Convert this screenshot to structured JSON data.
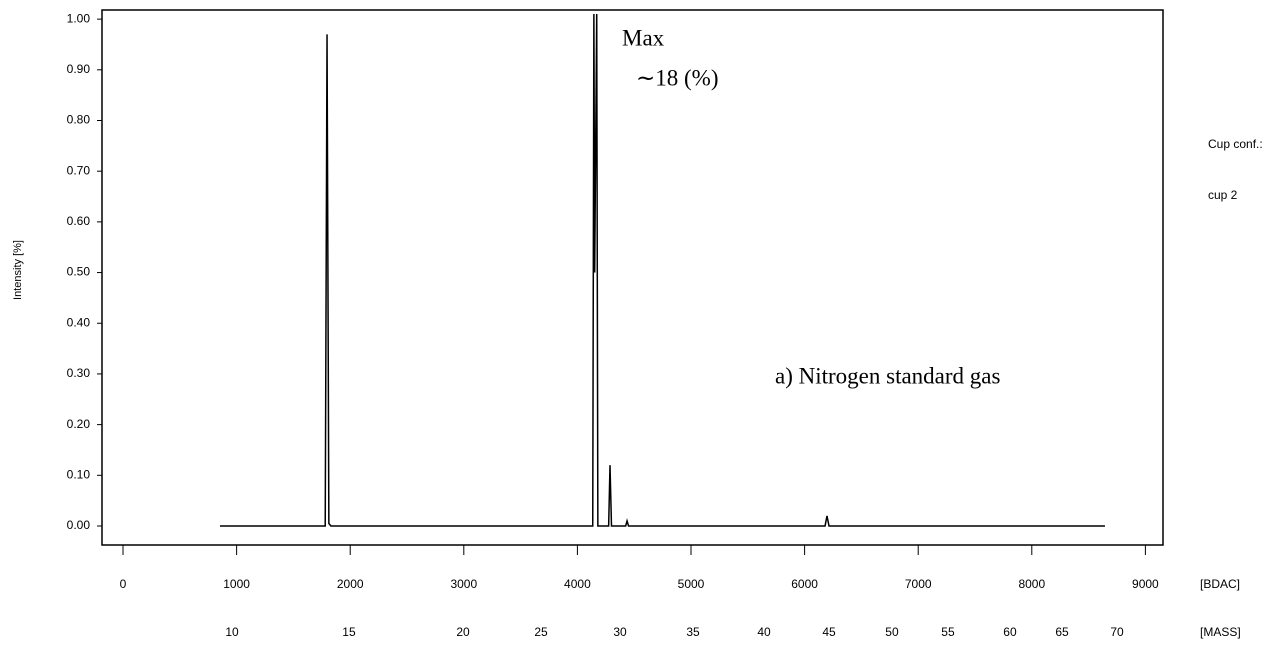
{
  "chart_data": {
    "type": "line",
    "y_label": "Intensity [%]",
    "x_label": "[BDAC]",
    "x2_label": "[MASS]",
    "side_texts": [
      "Cup conf.:",
      "cup 2"
    ],
    "annotations": [
      "Max",
      "∼18 (%)",
      "a) Nitrogen standard gas"
    ],
    "x": [
      854,
      1780,
      1796,
      1812,
      1830,
      4135,
      4145,
      4152,
      4170,
      4180,
      4275,
      4287,
      4300,
      4425,
      4437,
      4450,
      6180,
      6197,
      6215,
      8644
    ],
    "series": [
      {
        "color": "#000000",
        "values": [
          0,
          0,
          0.97,
          0.005,
          0,
          0,
          1.01,
          0.5,
          1.01,
          0,
          0,
          0.12,
          0,
          0,
          0.01,
          0,
          0,
          0.02,
          0,
          0
        ]
      }
    ],
    "xlim": [
      -185,
      9155
    ],
    "ylim": [
      -0.0375,
      1.018
    ],
    "xticks": [
      0,
      1000,
      2000,
      3000,
      4000,
      5000,
      6000,
      7000,
      8000,
      9000
    ],
    "x2ticks": [
      {
        "value": 960,
        "label": "10"
      },
      {
        "value": 1989,
        "label": "15"
      },
      {
        "value": 2993,
        "label": "20"
      },
      {
        "value": 3680,
        "label": "25"
      },
      {
        "value": 4375,
        "label": "30"
      },
      {
        "value": 5018,
        "label": "35"
      },
      {
        "value": 5643,
        "label": "40"
      },
      {
        "value": 6215,
        "label": "45"
      },
      {
        "value": 6769,
        "label": "50"
      },
      {
        "value": 7262,
        "label": "55"
      },
      {
        "value": 7808,
        "label": "60"
      },
      {
        "value": 8266,
        "label": "65"
      },
      {
        "value": 8750,
        "label": "70"
      }
    ],
    "yticks": [
      {
        "value": 0,
        "label": "0.00"
      },
      {
        "value": 0.1,
        "label": "0.10"
      },
      {
        "value": 0.2,
        "label": "0.20"
      },
      {
        "value": 0.3,
        "label": "0.30"
      },
      {
        "value": 0.4,
        "label": "0.40"
      },
      {
        "value": 0.5,
        "label": "0.50"
      },
      {
        "value": 0.6,
        "label": "0.60"
      },
      {
        "value": 0.7,
        "label": "0.70"
      },
      {
        "value": 0.8,
        "label": "0.80"
      },
      {
        "value": 0.9,
        "label": "0.90"
      },
      {
        "value": 1.0,
        "label": "1.00"
      }
    ]
  }
}
